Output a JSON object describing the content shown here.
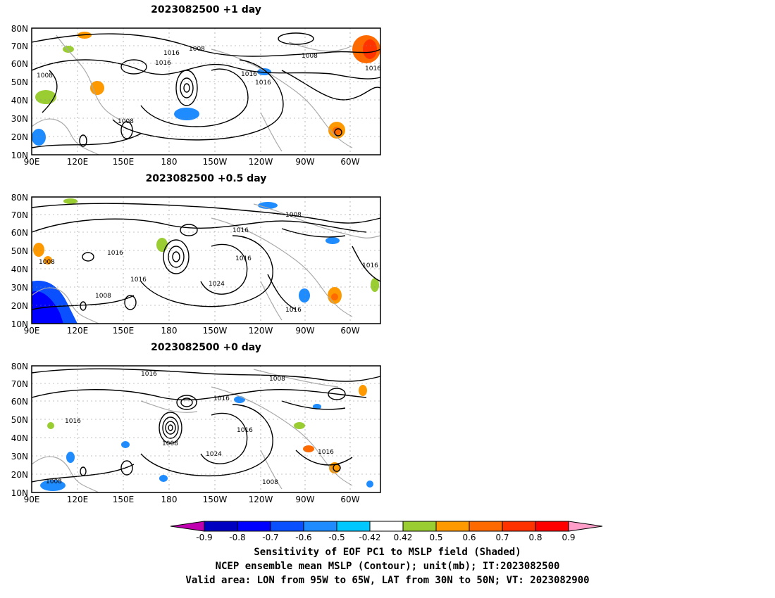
{
  "panels": [
    {
      "title": "2023082500  +1 day"
    },
    {
      "title": "2023082500  +0.5 day"
    },
    {
      "title": "2023082500  +0 day"
    }
  ],
  "axes": {
    "y_ticks": [
      "80N",
      "70N",
      "60N",
      "50N",
      "40N",
      "30N",
      "20N",
      "10N"
    ],
    "x_ticks": [
      "90E",
      "120E",
      "150E",
      "180",
      "150W",
      "120W",
      "90W",
      "60W"
    ]
  },
  "contour_labels": [
    [
      "1016",
      "1008",
      "1016",
      "1008",
      "1008",
      "1016",
      "1016",
      "1016",
      "1008"
    ],
    [
      "1008",
      "1016",
      "1016",
      "1008",
      "1016",
      "1016",
      "1016",
      "1008",
      "1024",
      "1016"
    ],
    [
      "1016",
      "1008",
      "1016",
      "1016",
      "1016",
      "1008",
      "1024",
      "1016",
      "1008",
      "1008"
    ]
  ],
  "colorbar": {
    "ticks": [
      "-0.9",
      "-0.8",
      "-0.7",
      "-0.6",
      "-0.5",
      "-0.42",
      "0.42",
      "0.5",
      "0.6",
      "0.7",
      "0.8",
      "0.9"
    ],
    "colors": [
      "#c000b0",
      "#0000c0",
      "#0000ff",
      "#0a50ff",
      "#1e8cff",
      "#00c8ff",
      "#ffffff",
      "#9acd32",
      "#ff9900",
      "#ff6a00",
      "#ff3300",
      "#ff0000",
      "#ff9ec8"
    ]
  },
  "captions": {
    "line1": "Sensitivity of EOF PC1 to MSLP field (Shaded)",
    "line2": "NCEP ensemble mean MSLP (Contour); unit(mb); IT:2023082500",
    "line3": "Valid area: LON from 95W to 65W, LAT from 30N to 50N; VT: 2023082900"
  }
}
